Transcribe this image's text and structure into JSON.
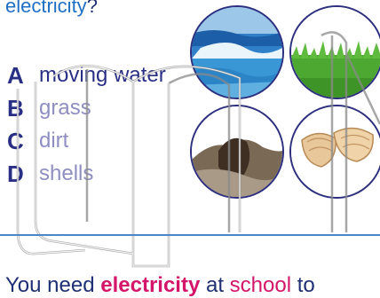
{
  "question": {
    "prefix": "",
    "keyword": "electricity",
    "suffix": "?"
  },
  "answers": [
    {
      "letter": "A",
      "text": "moving water",
      "selected": true
    },
    {
      "letter": "B",
      "text": "grass",
      "selected": false
    },
    {
      "letter": "C",
      "text": "dirt",
      "selected": false
    },
    {
      "letter": "D",
      "text": "shells",
      "selected": false
    }
  ],
  "pictures": [
    "water-picture",
    "grass-picture",
    "dirt-picture",
    "shells-picture"
  ],
  "bottom": {
    "p1": "You need ",
    "hl1": "electricity",
    "p2": " at ",
    "hl2": "school",
    "p3": " to"
  },
  "colors": {
    "navy": "#2a2f86",
    "lavender": "#8f8ec2",
    "magenta": "#d4166a",
    "rule": "#4b87c6"
  }
}
